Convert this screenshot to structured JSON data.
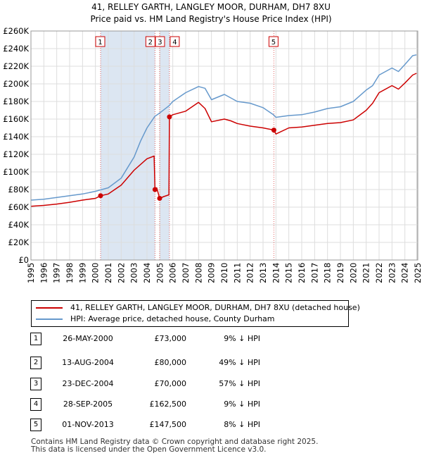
{
  "title": {
    "line1": "41, RELLEY GARTH, LANGLEY MOOR, DURHAM, DH7 8XU",
    "line2": "Price paid vs. HM Land Registry's House Price Index (HPI)"
  },
  "colors": {
    "property": "#cc0000",
    "hpi": "#6699cc",
    "shade": "#dce6f2",
    "grid": "#dddddd"
  },
  "legend": {
    "property_label": "41, RELLEY GARTH, LANGLEY MOOR, DURHAM, DH7 8XU (detached house)",
    "hpi_label": "HPI: Average price, detached house, County Durham"
  },
  "sales": [
    {
      "num": "1",
      "date": "26-MAY-2000",
      "price": "£73,000",
      "hpi": "9% ↓ HPI"
    },
    {
      "num": "2",
      "date": "13-AUG-2004",
      "price": "£80,000",
      "hpi": "49% ↓ HPI"
    },
    {
      "num": "3",
      "date": "23-DEC-2004",
      "price": "£70,000",
      "hpi": "57% ↓ HPI"
    },
    {
      "num": "4",
      "date": "28-SEP-2005",
      "price": "£162,500",
      "hpi": "9% ↓ HPI"
    },
    {
      "num": "5",
      "date": "01-NOV-2013",
      "price": "£147,500",
      "hpi": "8% ↓ HPI"
    }
  ],
  "footer": {
    "line1": "Contains HM Land Registry data © Crown copyright and database right 2025.",
    "line2": "This data is licensed under the Open Government Licence v3.0."
  },
  "chart_data": {
    "type": "line",
    "x_range": [
      1995,
      2025
    ],
    "y_range": [
      0,
      260000
    ],
    "y_ticks": [
      0,
      20000,
      40000,
      60000,
      80000,
      100000,
      120000,
      140000,
      160000,
      180000,
      200000,
      220000,
      240000,
      260000
    ],
    "y_tick_labels": [
      "£0",
      "£20K",
      "£40K",
      "£60K",
      "£80K",
      "£100K",
      "£120K",
      "£140K",
      "£160K",
      "£180K",
      "£200K",
      "£220K",
      "£240K",
      "£260K"
    ],
    "x_ticks": [
      1995,
      1996,
      1997,
      1998,
      1999,
      2000,
      2001,
      2002,
      2003,
      2004,
      2005,
      2006,
      2007,
      2008,
      2009,
      2010,
      2011,
      2012,
      2013,
      2014,
      2015,
      2016,
      2017,
      2018,
      2019,
      2020,
      2021,
      2022,
      2023,
      2024,
      2025
    ],
    "grid": true,
    "markers": [
      {
        "label": "1",
        "x": 2000.4,
        "y": 73000
      },
      {
        "label": "2",
        "x": 2004.62,
        "y": 80000
      },
      {
        "label": "3",
        "x": 2004.98,
        "y": 70000
      },
      {
        "label": "4",
        "x": 2005.74,
        "y": 162500
      },
      {
        "label": "5",
        "x": 2013.84,
        "y": 147500
      }
    ],
    "series": [
      {
        "name": "HPI: Average price, detached house, County Durham",
        "points": [
          [
            1995,
            68000
          ],
          [
            1996,
            69000
          ],
          [
            1997,
            71000
          ],
          [
            1998,
            73000
          ],
          [
            1999,
            75000
          ],
          [
            2000,
            78000
          ],
          [
            2001,
            82000
          ],
          [
            2002,
            93000
          ],
          [
            2003,
            117000
          ],
          [
            2003.5,
            135000
          ],
          [
            2004,
            150000
          ],
          [
            2004.6,
            163000
          ],
          [
            2005,
            167000
          ],
          [
            2005.7,
            175000
          ],
          [
            2006,
            180000
          ],
          [
            2007,
            190000
          ],
          [
            2008,
            197000
          ],
          [
            2008.5,
            195000
          ],
          [
            2009,
            182000
          ],
          [
            2010,
            188000
          ],
          [
            2010.5,
            184000
          ],
          [
            2011,
            180000
          ],
          [
            2012,
            178000
          ],
          [
            2013,
            173000
          ],
          [
            2013.8,
            165000
          ],
          [
            2014,
            162000
          ],
          [
            2015,
            164000
          ],
          [
            2016,
            165000
          ],
          [
            2017,
            168000
          ],
          [
            2018,
            172000
          ],
          [
            2019,
            174000
          ],
          [
            2020,
            180000
          ],
          [
            2021,
            193000
          ],
          [
            2021.5,
            198000
          ],
          [
            2022,
            210000
          ],
          [
            2023,
            218000
          ],
          [
            2023.5,
            214000
          ],
          [
            2024,
            222000
          ],
          [
            2024.6,
            232000
          ],
          [
            2024.9,
            233000
          ]
        ]
      },
      {
        "name": "41, RELLEY GARTH, LANGLEY MOOR, DURHAM, DH7 8XU (detached house)",
        "points": [
          [
            1995,
            61000
          ],
          [
            1996,
            62000
          ],
          [
            1997,
            63500
          ],
          [
            1998,
            65500
          ],
          [
            1999,
            68000
          ],
          [
            2000,
            70000
          ],
          [
            2000.4,
            73000
          ],
          [
            2001,
            75000
          ],
          [
            2002,
            85000
          ],
          [
            2003,
            102000
          ],
          [
            2004,
            115000
          ],
          [
            2004.55,
            118000
          ],
          [
            2004.62,
            80000
          ],
          [
            2004.75,
            82000
          ],
          [
            2004.98,
            70000
          ],
          [
            2005.3,
            72000
          ],
          [
            2005.7,
            74000
          ],
          [
            2005.74,
            162500
          ],
          [
            2006,
            165000
          ],
          [
            2007,
            169000
          ],
          [
            2008,
            179000
          ],
          [
            2008.5,
            172000
          ],
          [
            2009,
            157000
          ],
          [
            2010,
            160000
          ],
          [
            2010.5,
            158000
          ],
          [
            2011,
            155000
          ],
          [
            2012,
            152000
          ],
          [
            2013,
            150000
          ],
          [
            2013.84,
            147500
          ],
          [
            2014,
            143000
          ],
          [
            2015,
            150000
          ],
          [
            2016,
            151000
          ],
          [
            2017,
            153000
          ],
          [
            2018,
            155000
          ],
          [
            2019,
            156000
          ],
          [
            2020,
            159000
          ],
          [
            2021,
            170000
          ],
          [
            2021.5,
            178000
          ],
          [
            2022,
            190000
          ],
          [
            2023,
            198000
          ],
          [
            2023.5,
            194000
          ],
          [
            2024,
            201000
          ],
          [
            2024.6,
            210000
          ],
          [
            2024.9,
            212000
          ]
        ]
      }
    ]
  }
}
